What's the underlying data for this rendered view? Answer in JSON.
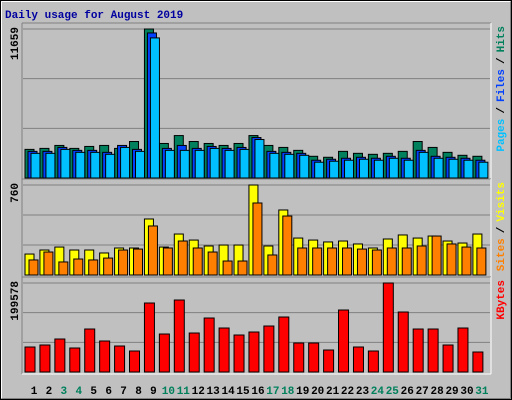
{
  "chart_data": [
    {
      "type": "bar",
      "title": "Daily usage for August 2019",
      "ylim": [
        0,
        11659
      ],
      "yticks": [
        11659
      ],
      "legend_separator": "/",
      "series": [
        {
          "name": "Hits",
          "color": "#00805c",
          "values": [
            2239,
            2316,
            2548,
            2316,
            2470,
            2548,
            2316,
            2856,
            11659,
            2702,
            3320,
            2856,
            2702,
            2548,
            2702,
            3320,
            2548,
            2393,
            2162,
            1698,
            1621,
            2084,
            1930,
            1853,
            1930,
            2084,
            2856,
            2393,
            2007,
            1776,
            1698
          ]
        },
        {
          "name": "Files",
          "color": "#0040ff",
          "values": [
            2084,
            2084,
            2393,
            2162,
            2162,
            2007,
            2548,
            2239,
            11350,
            2316,
            2548,
            2316,
            2470,
            2316,
            2393,
            3165,
            2084,
            2007,
            1930,
            1390,
            1467,
            1544,
            1621,
            1544,
            1698,
            1544,
            2162,
            1698,
            1621,
            1544,
            1390
          ]
        },
        {
          "name": "Pages",
          "color": "#00c0ff",
          "values": [
            1930,
            1930,
            2239,
            2007,
            2007,
            1853,
            2393,
            2084,
            10962,
            2162,
            2162,
            2162,
            2316,
            2162,
            2239,
            3011,
            1930,
            1853,
            1776,
            1235,
            1312,
            1390,
            1467,
            1390,
            1544,
            1390,
            2007,
            1544,
            1467,
            1390,
            1235
          ]
        }
      ]
    },
    {
      "type": "bar",
      "ylim": [
        0,
        760
      ],
      "yticks": [
        760
      ],
      "legend_separator": "/",
      "series": [
        {
          "name": "Visits",
          "color": "#ffff00",
          "values": [
            177,
            211,
            236,
            211,
            211,
            186,
            228,
            228,
            473,
            236,
            346,
            295,
            245,
            253,
            253,
            760,
            245,
            549,
            312,
            295,
            279,
            287,
            262,
            228,
            304,
            338,
            312,
            329,
            287,
            270,
            346
          ]
        },
        {
          "name": "Sites",
          "color": "#ff8000",
          "values": [
            127,
            194,
            110,
            135,
            127,
            143,
            211,
            219,
            414,
            228,
            287,
            228,
            194,
            118,
            118,
            608,
            169,
            498,
            228,
            228,
            228,
            228,
            219,
            211,
            228,
            228,
            245,
            329,
            262,
            236,
            228
          ]
        }
      ]
    },
    {
      "type": "bar",
      "ylim": [
        0,
        199578
      ],
      "yticks": [
        199578
      ],
      "categories": [
        "1",
        "2",
        "3",
        "4",
        "5",
        "6",
        "7",
        "8",
        "9",
        "10",
        "11",
        "12",
        "13",
        "14",
        "15",
        "16",
        "17",
        "18",
        "19",
        "20",
        "21",
        "22",
        "23",
        "24",
        "25",
        "26",
        "27",
        "28",
        "29",
        "30",
        "31"
      ],
      "category_colors": [
        "#000000",
        "#000000",
        "#00805c",
        "#00805c",
        "#000000",
        "#000000",
        "#000000",
        "#000000",
        "#000000",
        "#00805c",
        "#00805c",
        "#000000",
        "#000000",
        "#000000",
        "#000000",
        "#000000",
        "#00805c",
        "#00805c",
        "#000000",
        "#000000",
        "#000000",
        "#000000",
        "#000000",
        "#00805c",
        "#00805c",
        "#000000",
        "#000000",
        "#000000",
        "#000000",
        "#000000",
        "#00805c"
      ],
      "series": [
        {
          "name": "KBytes",
          "color": "#ff0000",
          "values": [
            56050,
            60534,
            73986,
            53808,
            96406,
            69502,
            58292,
            47082,
            154698,
            85196,
            161424,
            87438,
            121068,
            98648,
            82954,
            89680,
            103132,
            123310,
            65018,
            65018,
            49324,
            139004,
            56050,
            47082,
            199578,
            134520,
            96406,
            96406,
            60534,
            98648,
            44840
          ]
        }
      ]
    }
  ]
}
